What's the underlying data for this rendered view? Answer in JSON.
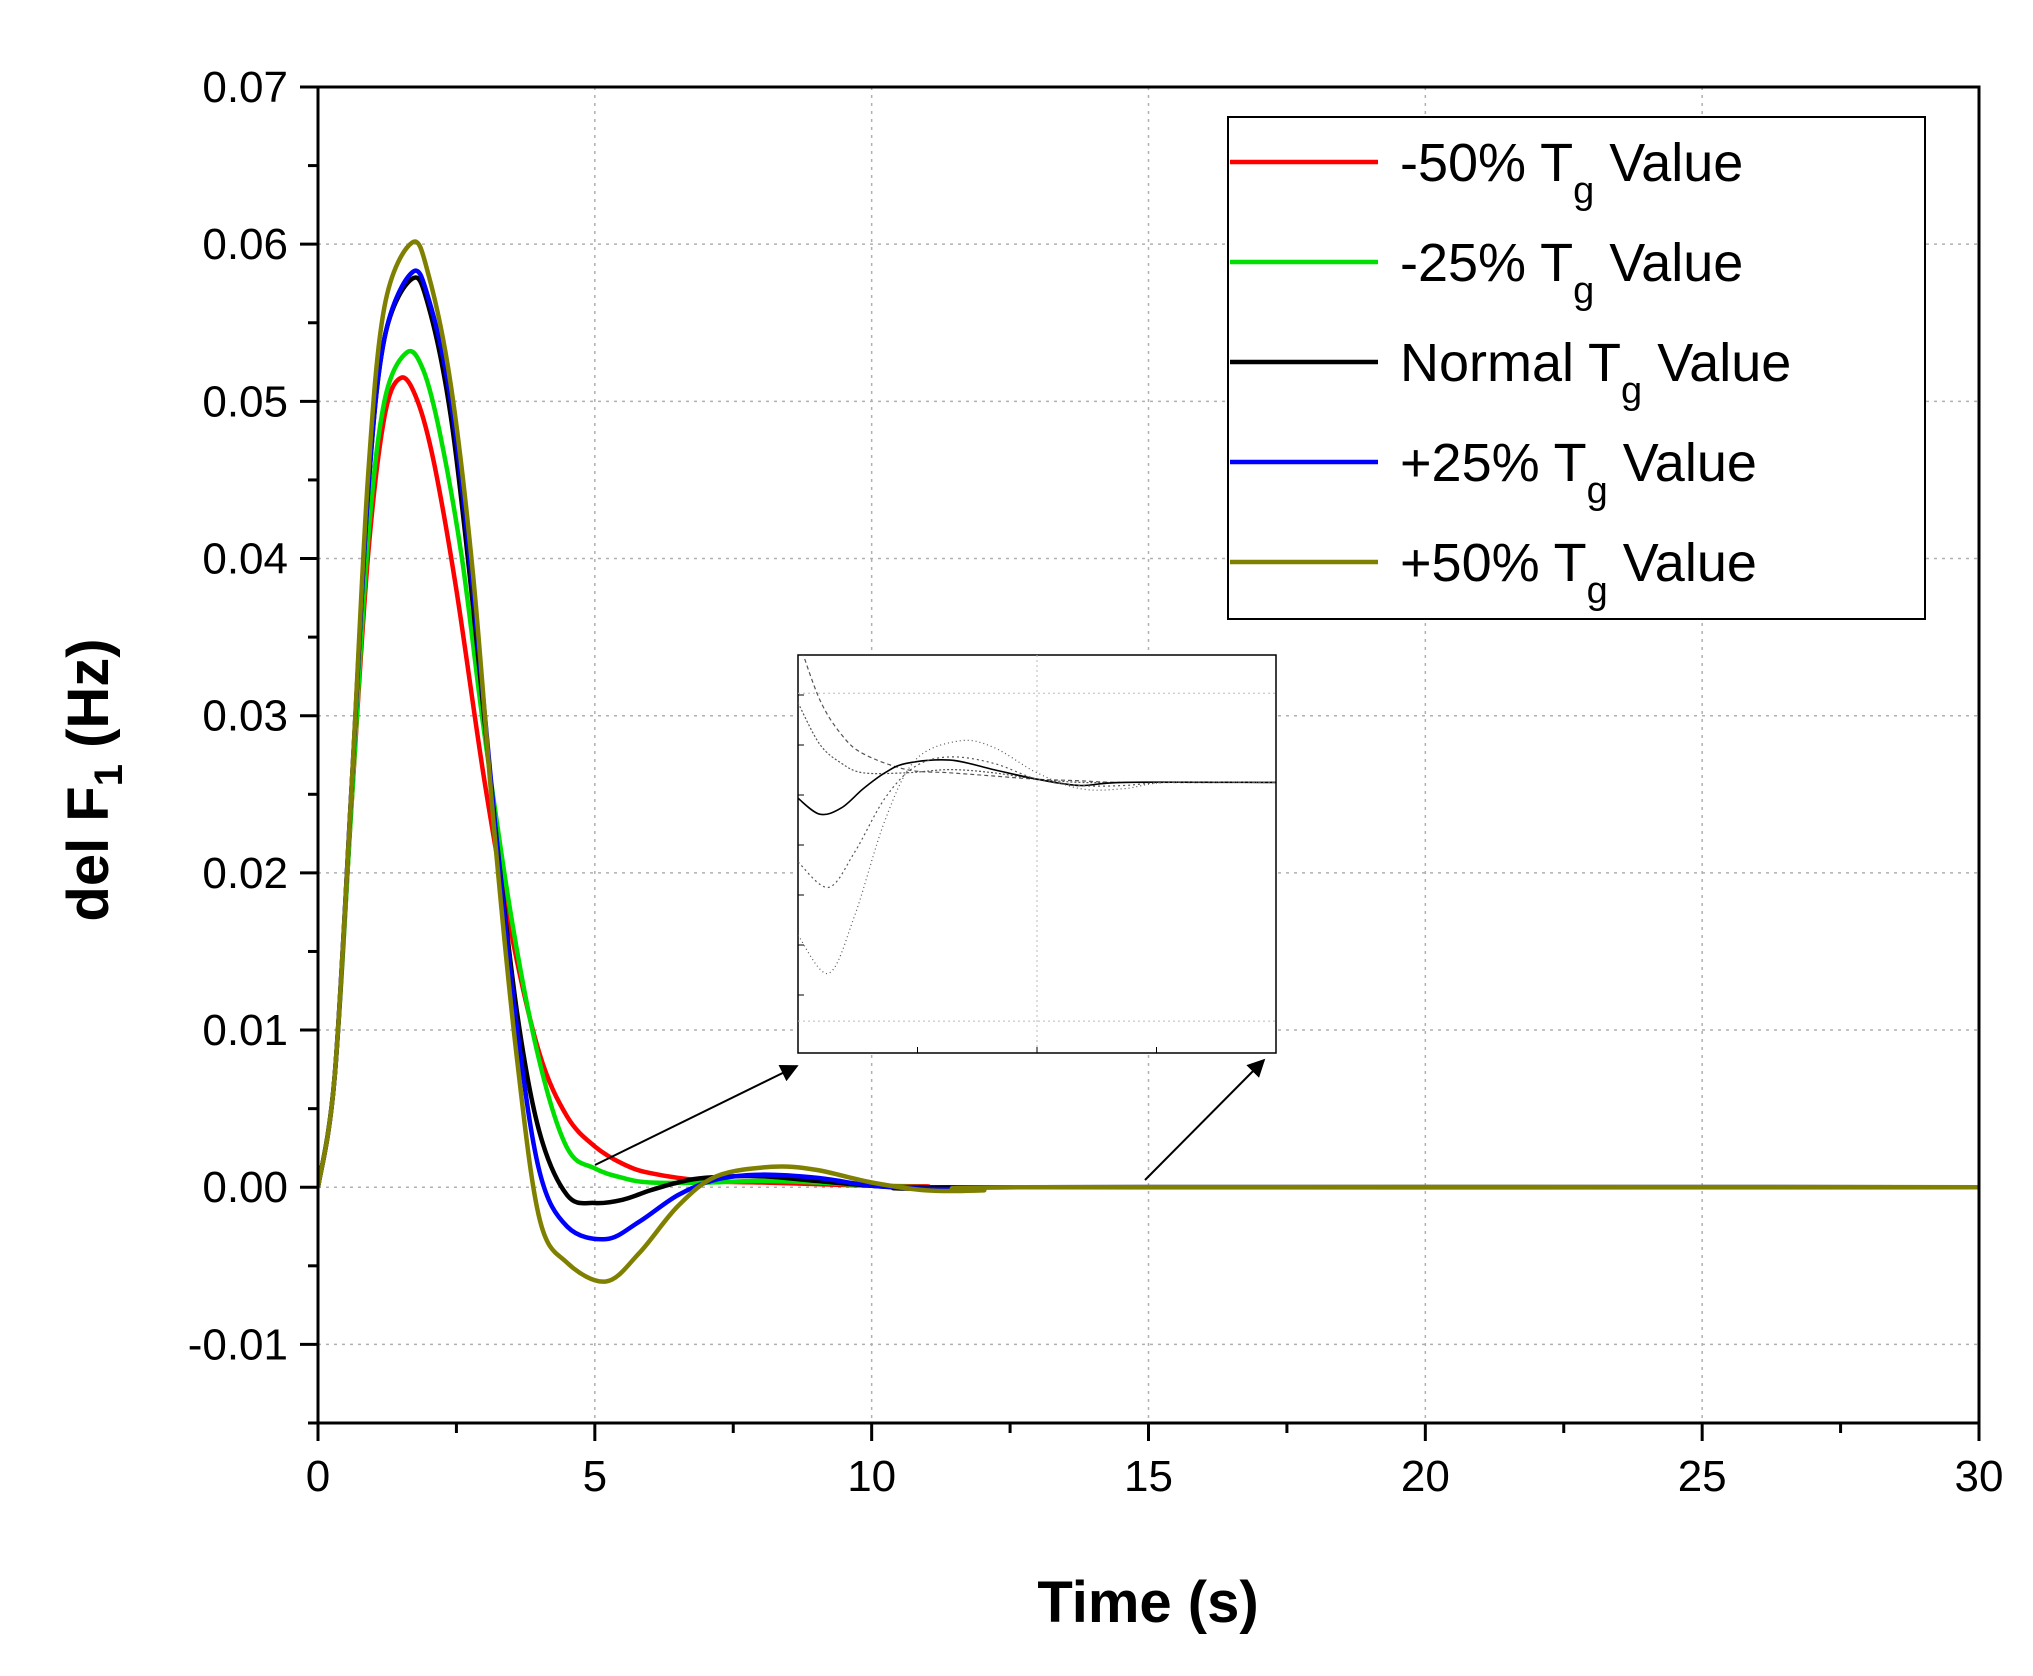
{
  "chart_data": {
    "type": "line",
    "title": "",
    "xlabel": "Time (s)",
    "ylabel": {
      "text": "del F",
      "subscript": "1",
      "unit": " (Hz)"
    },
    "xlim": [
      0,
      30
    ],
    "ylim": [
      -0.015,
      0.07
    ],
    "grid": true,
    "legend_position": "top-right",
    "xticks": [
      0,
      5,
      10,
      15,
      20,
      25,
      30
    ],
    "xtick_labels": [
      "0",
      "5",
      "10",
      "15",
      "20",
      "25",
      "30"
    ],
    "yticks": [
      -0.01,
      0.0,
      0.01,
      0.02,
      0.03,
      0.04,
      0.05,
      0.06,
      0.07
    ],
    "ytick_labels": [
      "-0.01",
      "0.00",
      "0.01",
      "0.02",
      "0.03",
      "0.04",
      "0.05",
      "0.06",
      "0.07"
    ],
    "series": [
      {
        "name": "-50% Tg Value",
        "label_main": "-50% T",
        "label_sub": "g",
        "label_tail": " Value",
        "color": "#ff0000",
        "x": [
          0,
          0.3,
          0.6,
          0.9,
          1.2,
          1.5,
          1.8,
          2.1,
          2.5,
          3.0,
          3.5,
          4.0,
          4.5,
          5.0,
          5.5,
          6.0,
          7.0,
          8.0,
          9.0,
          10.0,
          11.0,
          12.0,
          30.0
        ],
        "values": [
          0,
          0.007,
          0.024,
          0.04,
          0.049,
          0.0515,
          0.05,
          0.046,
          0.038,
          0.026,
          0.016,
          0.0085,
          0.0045,
          0.0026,
          0.0015,
          0.0009,
          0.0004,
          0.0003,
          0.0002,
          0.0001,
          5e-05,
          0.0,
          0.0
        ]
      },
      {
        "name": "-25% Tg Value",
        "label_main": "-25% T",
        "label_sub": "g",
        "label_tail": " Value",
        "color": "#00e000",
        "x": [
          0,
          0.3,
          0.6,
          0.9,
          1.2,
          1.6,
          1.9,
          2.2,
          2.6,
          3.0,
          3.5,
          4.0,
          4.5,
          5.0,
          5.5,
          6.0,
          7.0,
          8.0,
          9.0,
          10.0,
          11.0,
          12.0,
          30.0
        ],
        "values": [
          0,
          0.007,
          0.024,
          0.041,
          0.05,
          0.0531,
          0.052,
          0.048,
          0.04,
          0.029,
          0.017,
          0.008,
          0.0025,
          0.0012,
          0.0006,
          0.0003,
          0.0003,
          0.0004,
          0.0003,
          0.0001,
          0.0,
          0.0,
          0.0
        ]
      },
      {
        "name": "Normal Tg Value",
        "label_main": "Normal  T",
        "label_sub": "g",
        "label_tail": " Value",
        "color": "#000000",
        "x": [
          0,
          0.3,
          0.6,
          0.9,
          1.2,
          1.7,
          2.0,
          2.4,
          2.8,
          3.2,
          3.6,
          4.0,
          4.5,
          5.0,
          5.5,
          6.0,
          6.5,
          7.0,
          8.0,
          9.0,
          10.0,
          11.0,
          12.0,
          30.0
        ],
        "values": [
          0,
          0.007,
          0.025,
          0.044,
          0.054,
          0.0578,
          0.056,
          0.049,
          0.037,
          0.023,
          0.011,
          0.0035,
          -0.0005,
          -0.001,
          -0.0008,
          -0.0002,
          0.0003,
          0.0006,
          0.0007,
          0.0004,
          0.0001,
          -0.0001,
          0.0,
          0.0
        ]
      },
      {
        "name": "+25% Tg Value",
        "label_main": "+25% T",
        "label_sub": "g",
        "label_tail": " Value",
        "color": "#0000ff",
        "x": [
          0,
          0.3,
          0.6,
          0.9,
          1.2,
          1.7,
          2.0,
          2.4,
          2.8,
          3.2,
          3.6,
          4.0,
          4.5,
          5.2,
          5.8,
          6.5,
          7.2,
          8.0,
          9.0,
          10.0,
          11.0,
          12.0,
          13.0,
          30.0
        ],
        "values": [
          0,
          0.007,
          0.025,
          0.044,
          0.054,
          0.0582,
          0.0565,
          0.05,
          0.038,
          0.023,
          0.01,
          0.001,
          -0.0025,
          -0.0033,
          -0.0022,
          -0.0005,
          0.0005,
          0.0008,
          0.0006,
          0.0001,
          -0.0001,
          -0.0001,
          0.0,
          0.0
        ]
      },
      {
        "name": "+50% Tg Value",
        "label_main": "+50% T",
        "label_sub": "g",
        "label_tail": " Value",
        "color": "#808000",
        "x": [
          0,
          0.3,
          0.6,
          0.9,
          1.2,
          1.7,
          2.0,
          2.4,
          2.8,
          3.2,
          3.6,
          4.0,
          4.5,
          5.2,
          5.8,
          6.5,
          7.2,
          8.2,
          9.0,
          10.0,
          11.0,
          12.0,
          13.0,
          30.0
        ],
        "values": [
          0,
          0.007,
          0.025,
          0.045,
          0.056,
          0.0601,
          0.058,
          0.051,
          0.039,
          0.022,
          0.008,
          -0.002,
          -0.0048,
          -0.006,
          -0.0042,
          -0.0012,
          0.0007,
          0.0013,
          0.0011,
          0.0003,
          -0.0002,
          -0.0002,
          0.0,
          0.0
        ]
      }
    ],
    "inset": {
      "description_free": true,
      "arrows_from_x": [
        5.0,
        15.0
      ],
      "arrows_from_y": [
        0.001,
        0.0
      ]
    }
  }
}
